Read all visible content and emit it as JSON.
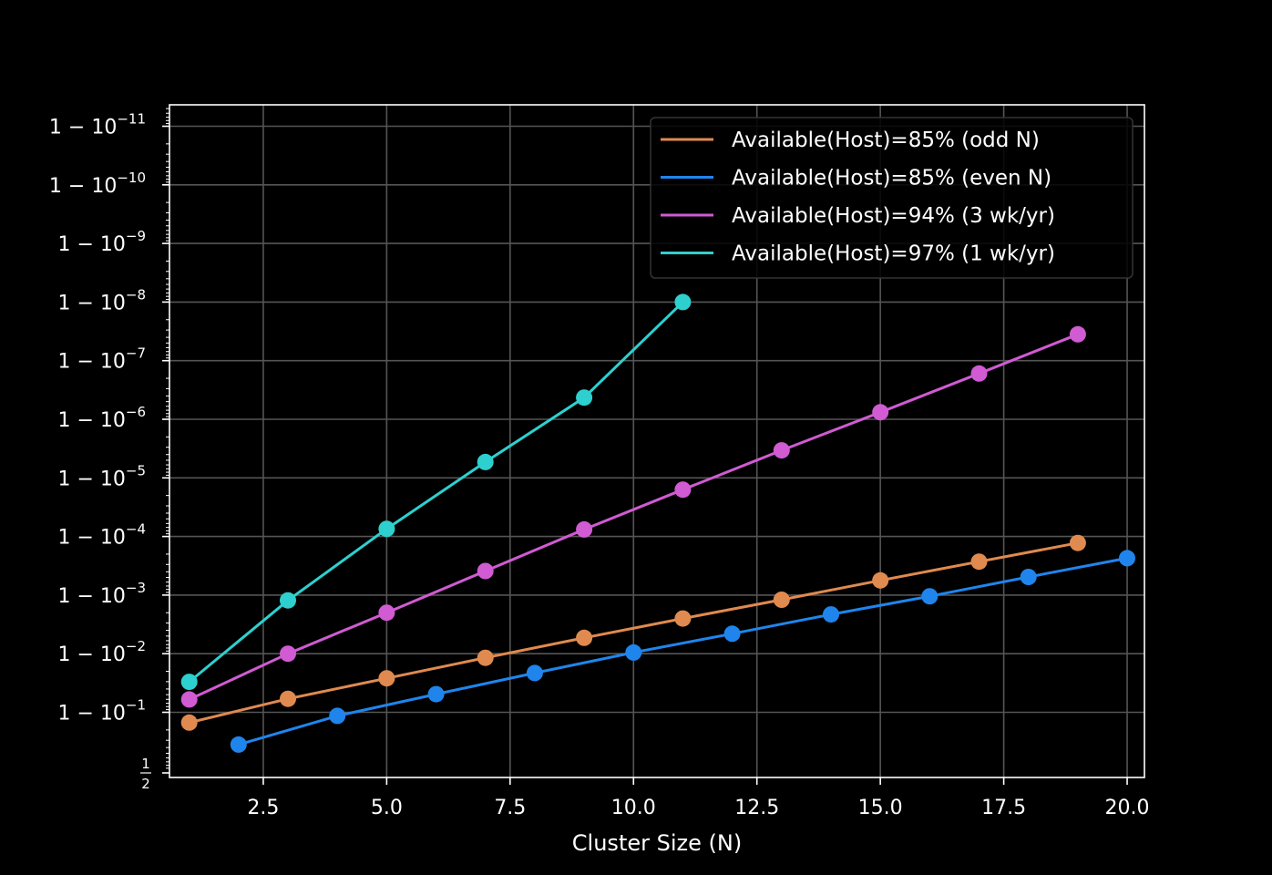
{
  "chart_data": {
    "type": "line",
    "title": "",
    "xlabel": "Cluster Size (N)",
    "ylabel": "",
    "y_scale": "logit (nines of availability)",
    "grid": true,
    "legend_placement": "top-right",
    "xlim": [
      0.6,
      20.35
    ],
    "x_ticks": [
      "2.5",
      "5.0",
      "7.5",
      "10.0",
      "12.5",
      "15.0",
      "17.5",
      "20.0"
    ],
    "y_ticks": [
      {
        "base": "1 − 10",
        "exp": "−11"
      },
      {
        "base": "1 − 10",
        "exp": "−10"
      },
      {
        "base": "1 − 10",
        "exp": "−9"
      },
      {
        "base": "1 − 10",
        "exp": "−8"
      },
      {
        "base": "1 − 10",
        "exp": "−7"
      },
      {
        "base": "1 − 10",
        "exp": "−6"
      },
      {
        "base": "1 − 10",
        "exp": "−5"
      },
      {
        "base": "1 − 10",
        "exp": "−4"
      },
      {
        "base": "1 − 10",
        "exp": "−3"
      },
      {
        "base": "1 − 10",
        "exp": "−2"
      },
      {
        "base": "1 − 10",
        "exp": "−1"
      },
      {
        "base": "1/2",
        "exp": ""
      }
    ],
    "series": [
      {
        "name": "Available(Host)=85% (odd N)",
        "color": "#e08a4f",
        "x": [
          1,
          3,
          5,
          7,
          9,
          11,
          13,
          15,
          17,
          19
        ],
        "nines": [
          0.824,
          1.23,
          1.58,
          1.93,
          2.27,
          2.6,
          2.92,
          3.25,
          3.57,
          3.89
        ]
      },
      {
        "name": "Available(Host)=85% (even N)",
        "color": "#1f85ec",
        "x": [
          2,
          4,
          6,
          8,
          10,
          12,
          14,
          16,
          18,
          20
        ],
        "nines": [
          0.45,
          0.94,
          1.31,
          1.67,
          2.02,
          2.34,
          2.67,
          2.98,
          3.31,
          3.63
        ]
      },
      {
        "name": "Available(Host)=94% (3 wk/yr)",
        "color": "#d05bd3",
        "x": [
          1,
          3,
          5,
          7,
          9,
          11,
          13,
          15,
          17,
          19
        ],
        "nines": [
          1.22,
          2.0,
          2.7,
          3.41,
          4.12,
          4.8,
          5.47,
          6.12,
          6.78,
          7.45
        ]
      },
      {
        "name": "Available(Host)=97% (1 wk/yr)",
        "color": "#2dd0cf",
        "x": [
          1,
          3,
          5,
          7,
          9,
          11
        ],
        "nines": [
          1.52,
          2.91,
          4.13,
          5.27,
          6.37,
          8.0
        ]
      }
    ]
  }
}
